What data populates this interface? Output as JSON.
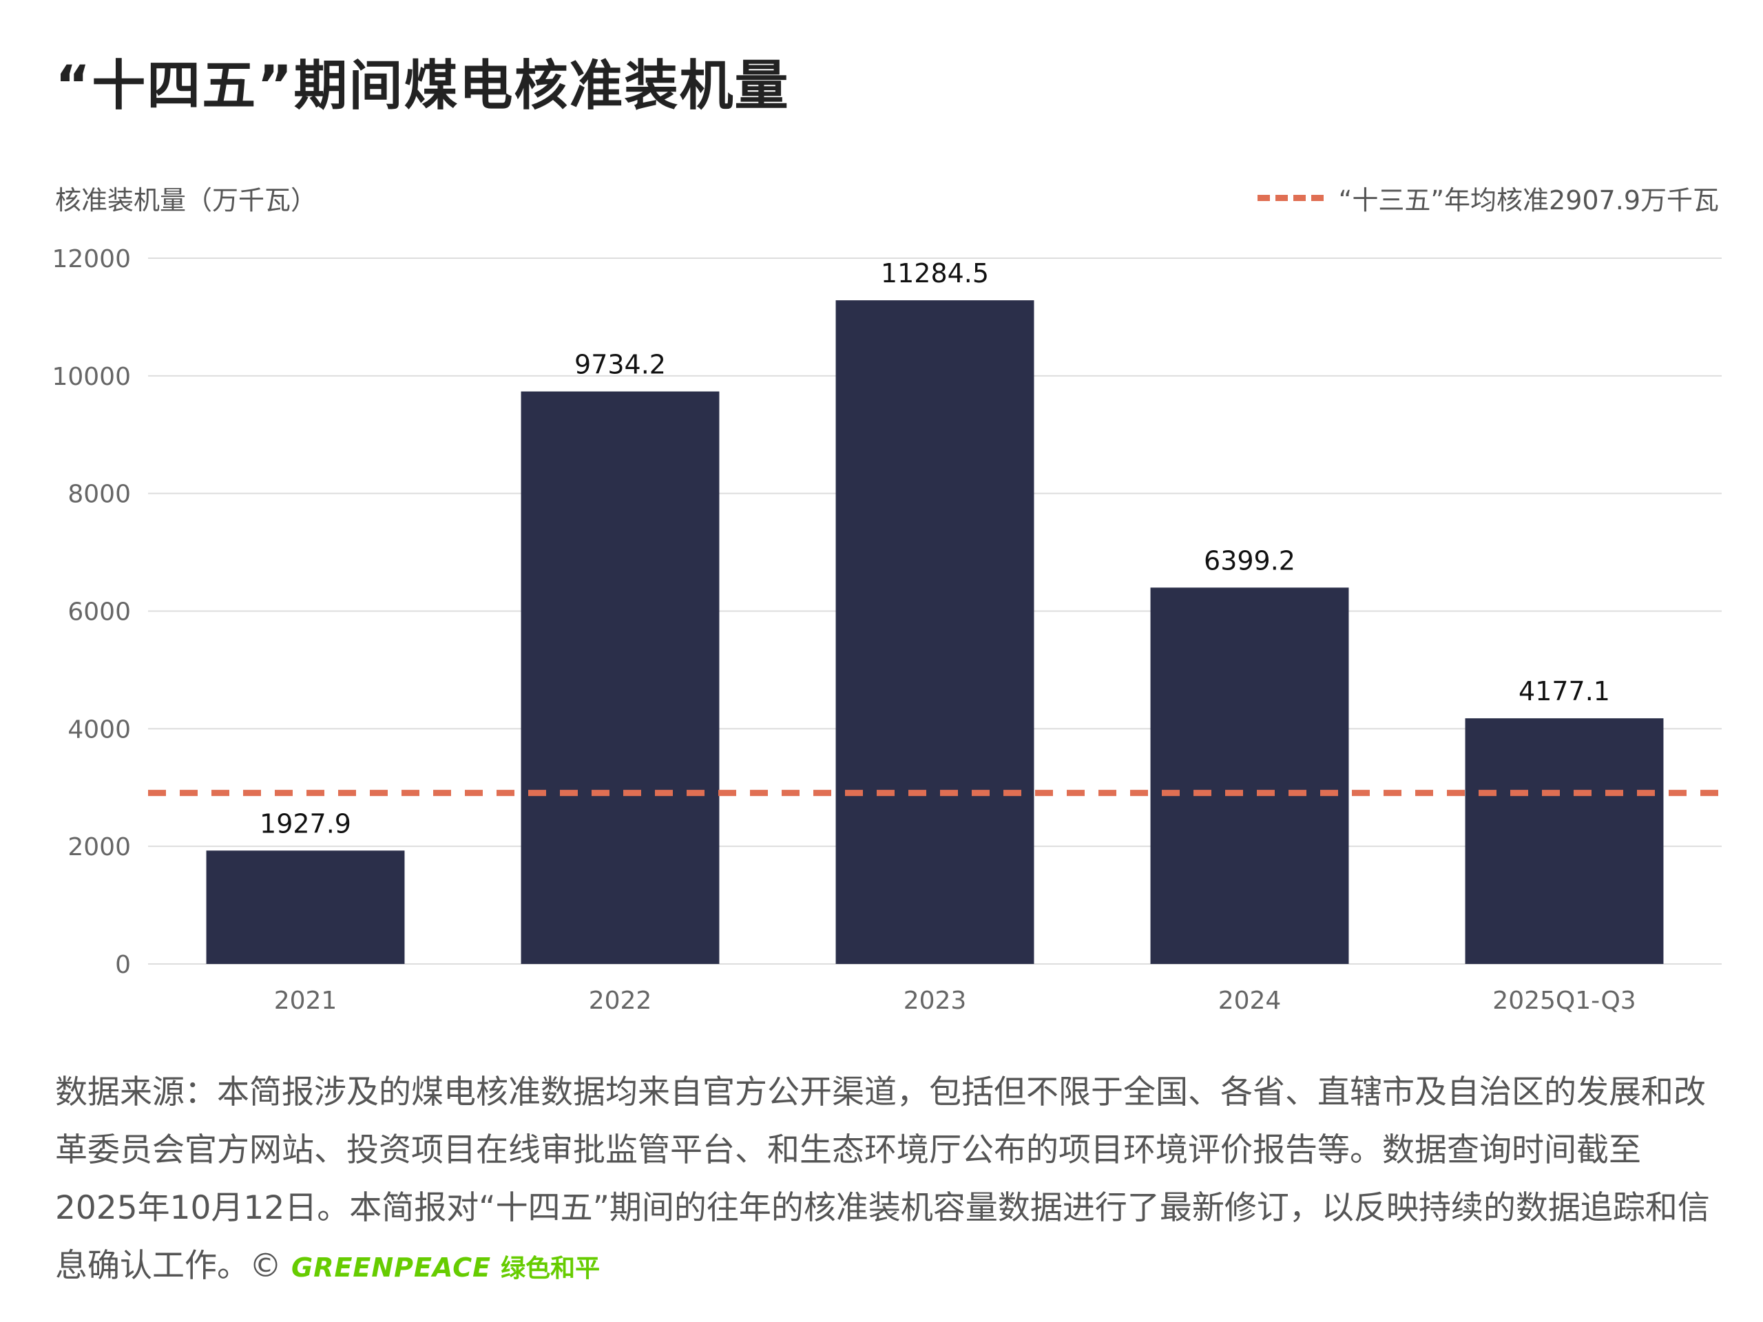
{
  "page": {
    "title": "“十四五”期间煤电核准装机量",
    "ylabel": "核准装机量（万千瓦）",
    "legend_label": "“十三五”年均核准2907.9万千瓦",
    "footnote": "数据来源：本简报涉及的煤电核准数据均来自官方公开渠道，包括但不限于全国、各省、直辖市及自治区的发展和改革委员会官方网站、投资项目在线审批监管平台、和生态环境厅公布的项目环境评价报告等。数据查询时间截至2025年10月12日。本简报对“十四五”期间的往年的核准装机容量数据进行了最新修订，以反映持续的数据追踪和信息确认工作。©",
    "brand_en": "GREENPEACE",
    "brand_cn": "绿色和平"
  },
  "colors": {
    "bar": "#2b2f4a",
    "reference_line": "#e06f53",
    "grid": "#dddddd",
    "brand": "#66cc00"
  },
  "chart_data": {
    "type": "bar",
    "title": "“十四五”期间煤电核准装机量",
    "xlabel": "",
    "ylabel": "核准装机量（万千瓦）",
    "categories": [
      "2021",
      "2022",
      "2023",
      "2024",
      "2025Q1-Q3"
    ],
    "values": [
      1927.9,
      9734.2,
      11284.5,
      6399.2,
      4177.1
    ],
    "data_labels": [
      "1927.9",
      "9734.2",
      "11284.5",
      "6399.2",
      "4177.1"
    ],
    "ylim": [
      0,
      12000
    ],
    "yticks": [
      0,
      2000,
      4000,
      6000,
      8000,
      10000,
      12000
    ],
    "grid": true,
    "reference_line": {
      "value": 2907.9,
      "label": "“十三五”年均核准2907.9万千瓦",
      "style": "dashed"
    },
    "legend_position": "top-right"
  }
}
